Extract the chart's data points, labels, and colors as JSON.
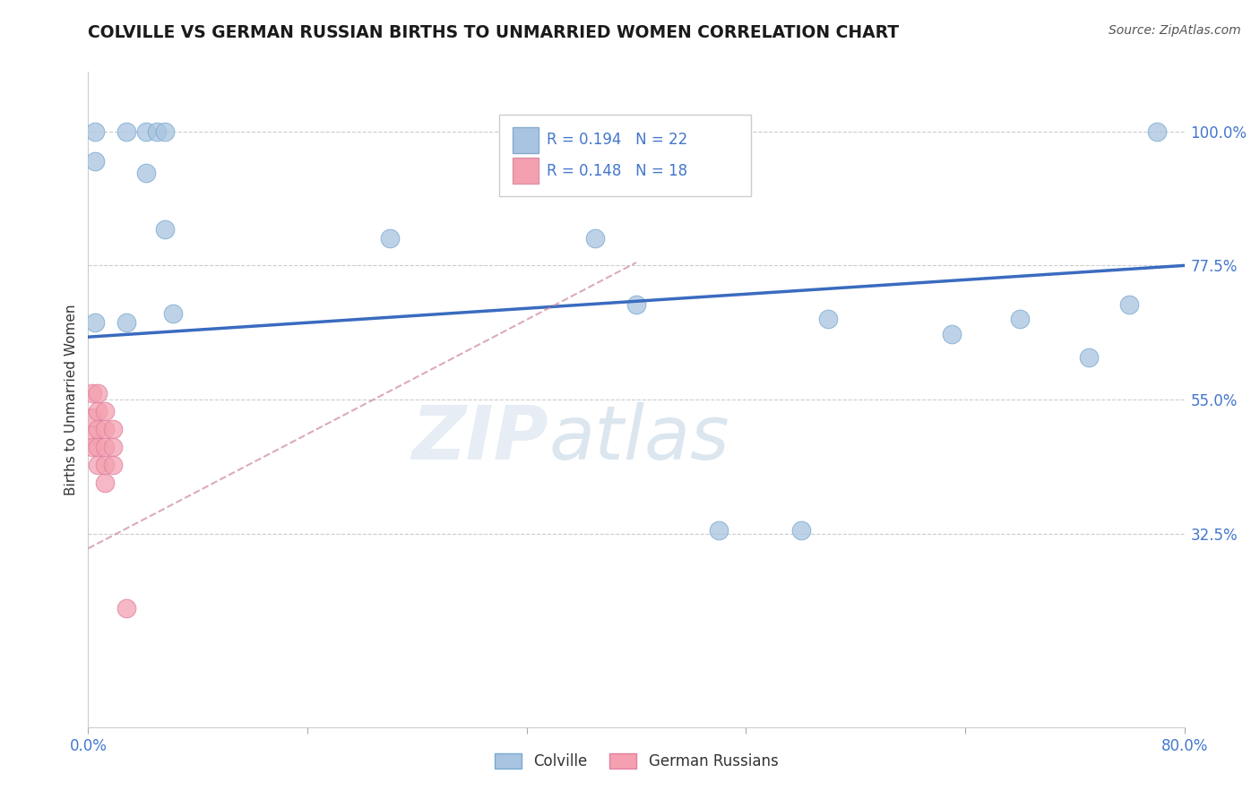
{
  "title": "COLVILLE VS GERMAN RUSSIAN BIRTHS TO UNMARRIED WOMEN CORRELATION CHART",
  "source": "Source: ZipAtlas.com",
  "ylabel": "Births to Unmarried Women",
  "xlim": [
    0.0,
    0.8
  ],
  "ylim": [
    0.0,
    1.1
  ],
  "ytick_values": [
    0.325,
    0.55,
    0.775,
    1.0
  ],
  "ytick_labels": [
    "32.5%",
    "55.0%",
    "77.5%",
    "100.0%"
  ],
  "grid_color": "#cccccc",
  "colville_color": "#a8c4e0",
  "german_russian_color": "#f4a0b0",
  "colville_edge": "#7aaad0",
  "german_edge": "#e080a0",
  "colville_label": "Colville",
  "german_russian_label": "German Russians",
  "R_colville": "0.194",
  "N_colville": "22",
  "R_german": "0.148",
  "N_german": "18",
  "colville_trend_color": "#3a6bbf",
  "german_trend_color": "#cc8899",
  "watermark_color": "#d0dce8",
  "colville_points_x": [
    0.005,
    0.028,
    0.042,
    0.05,
    0.056,
    0.005,
    0.042,
    0.056,
    0.062,
    0.22,
    0.37,
    0.4,
    0.005,
    0.028,
    0.63,
    0.73,
    0.76,
    0.78,
    0.46,
    0.52,
    0.54,
    0.68
  ],
  "colville_points_y": [
    1.0,
    1.0,
    1.0,
    1.0,
    1.0,
    0.95,
    0.93,
    0.835,
    0.695,
    0.82,
    0.82,
    0.71,
    0.68,
    0.68,
    0.66,
    0.62,
    0.71,
    1.0,
    0.33,
    0.33,
    0.685,
    0.685
  ],
  "german_points_x": [
    0.003,
    0.003,
    0.003,
    0.003,
    0.007,
    0.007,
    0.007,
    0.007,
    0.007,
    0.012,
    0.012,
    0.012,
    0.012,
    0.012,
    0.018,
    0.018,
    0.018,
    0.028
  ],
  "german_points_y": [
    0.56,
    0.52,
    0.49,
    0.47,
    0.56,
    0.53,
    0.5,
    0.47,
    0.44,
    0.53,
    0.5,
    0.47,
    0.44,
    0.41,
    0.5,
    0.47,
    0.44,
    0.2
  ],
  "blue_trend_x": [
    0.0,
    0.8
  ],
  "blue_trend_y": [
    0.655,
    0.775
  ],
  "pink_trend_x": [
    0.0,
    0.4
  ],
  "pink_trend_y": [
    0.3,
    0.78
  ],
  "legend_R_col": "R = 0.194",
  "legend_N_col": "N = 22",
  "legend_R_ger": "R = 0.148",
  "legend_N_ger": "N = 18"
}
